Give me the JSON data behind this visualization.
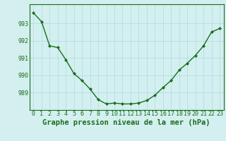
{
  "x": [
    0,
    1,
    2,
    3,
    4,
    5,
    6,
    7,
    8,
    9,
    10,
    11,
    12,
    13,
    14,
    15,
    16,
    17,
    18,
    19,
    20,
    21,
    22,
    23
  ],
  "y": [
    993.6,
    993.1,
    991.7,
    991.6,
    990.9,
    990.1,
    989.7,
    989.2,
    988.6,
    988.35,
    988.4,
    988.35,
    988.35,
    988.4,
    988.55,
    988.85,
    989.3,
    989.7,
    990.3,
    990.7,
    991.15,
    991.7,
    992.5,
    992.7
  ],
  "line_color": "#1a6e1a",
  "marker": "D",
  "marker_size": 2.0,
  "bg_color": "#d4eff0",
  "grid_color": "#aadddd",
  "xlabel": "Graphe pression niveau de la mer (hPa)",
  "xlabel_fontsize": 7.5,
  "yticks": [
    989,
    990,
    991,
    992,
    993
  ],
  "ytick_labels": [
    "989",
    "990",
    "991",
    "992",
    "993"
  ],
  "xticks": [
    0,
    1,
    2,
    3,
    4,
    5,
    6,
    7,
    8,
    9,
    10,
    11,
    12,
    13,
    14,
    15,
    16,
    17,
    18,
    19,
    20,
    21,
    22,
    23
  ],
  "ylim": [
    988.0,
    994.1
  ],
  "xlim": [
    -0.5,
    23.5
  ],
  "tick_fontsize": 6.0,
  "tick_color": "#1a6e1a"
}
